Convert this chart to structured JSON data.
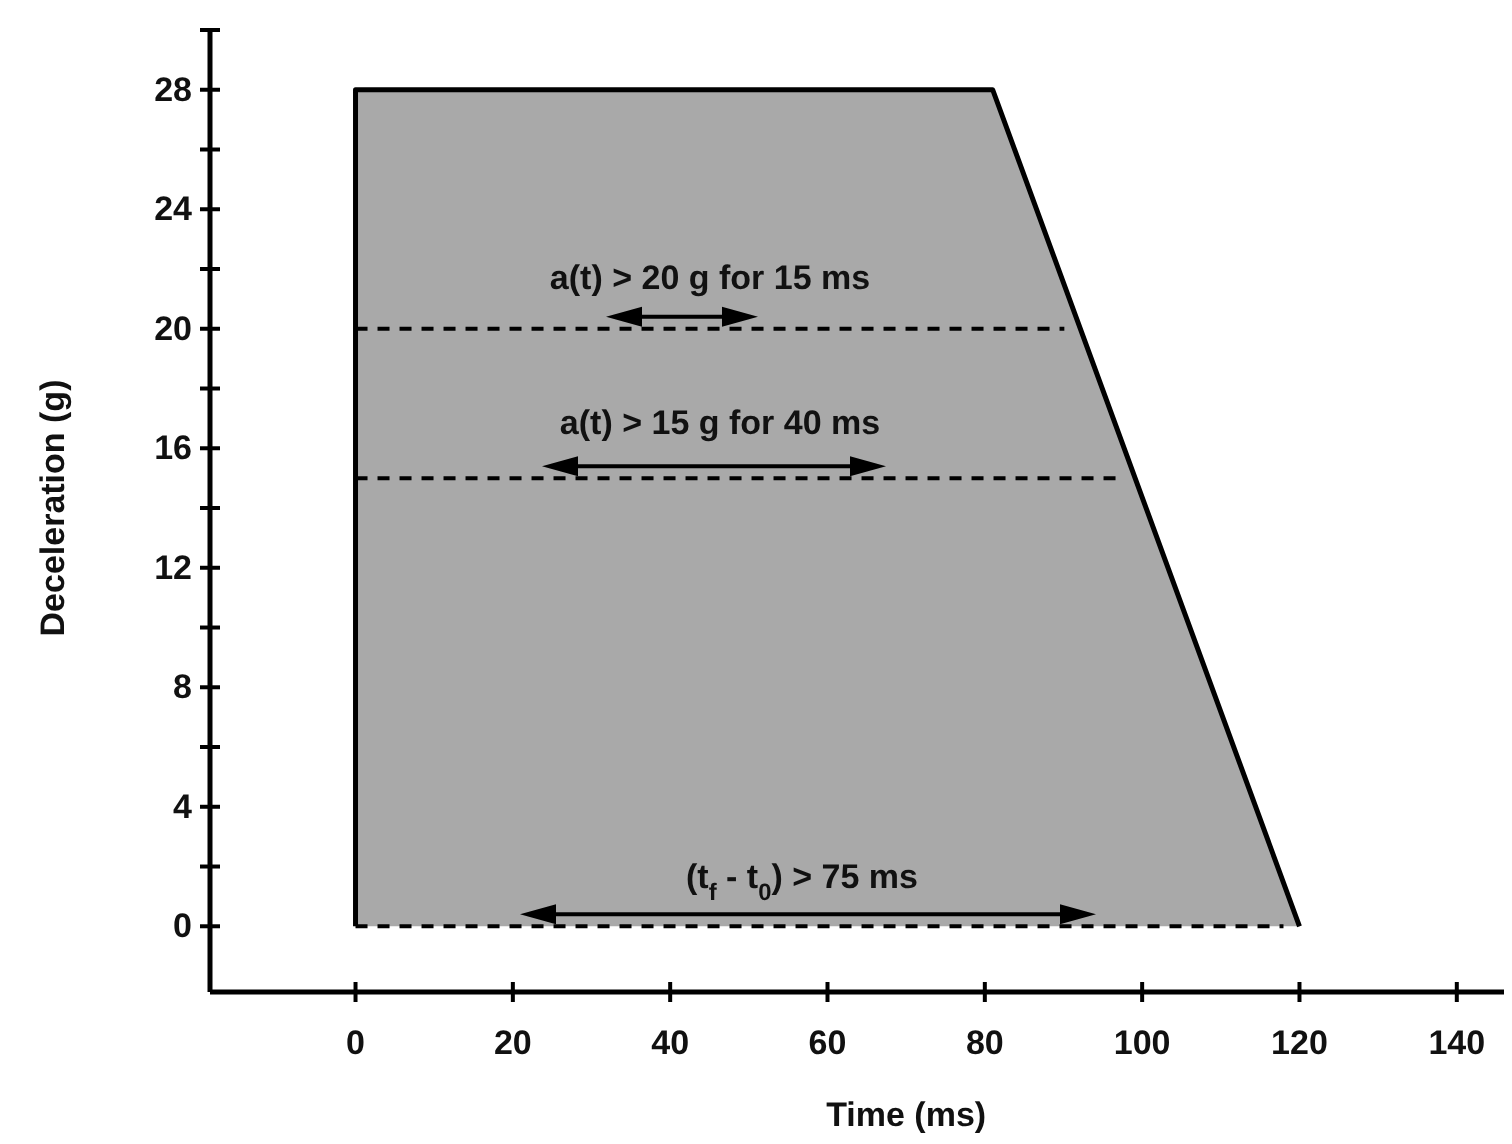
{
  "chart_data": {
    "type": "area",
    "xlabel": "Time (ms)",
    "ylabel": "Deceleration (g)",
    "xlim": [
      -18.5,
      146
    ],
    "ylim": [
      -2.2,
      30
    ],
    "xticks": [
      0,
      20,
      40,
      60,
      80,
      100,
      120,
      140
    ],
    "yticks": [
      0,
      {
        "value": 2,
        "label": null
      },
      4,
      {
        "value": 6,
        "label": null
      },
      8,
      {
        "value": 10,
        "label": null
      },
      12,
      {
        "value": 14,
        "label": null
      },
      16,
      {
        "value": 18,
        "label": null
      },
      20,
      {
        "value": 22,
        "label": null
      },
      24,
      {
        "value": 26,
        "label": null
      },
      28,
      {
        "value": 30,
        "label": null
      }
    ],
    "series": [
      {
        "color": "#a9a9a9",
        "x": [
          0,
          0,
          81,
          120
        ],
        "values": [
          0,
          28,
          28,
          0
        ]
      }
    ],
    "ref_lines": [
      {
        "axis": "y",
        "value": 20,
        "line_style": "dashed"
      },
      {
        "axis": "y",
        "value": 15,
        "line_style": "dashed"
      },
      {
        "axis": "y",
        "value": 0,
        "line_style": "dashed"
      }
    ],
    "annotations": [
      "a(t) > 20 g for 15 ms",
      "a(t) > 15 g for 40 ms",
      "(t$_{f}$ - t$_{0}$) > 75 ms"
    ],
    "grid": false
  }
}
